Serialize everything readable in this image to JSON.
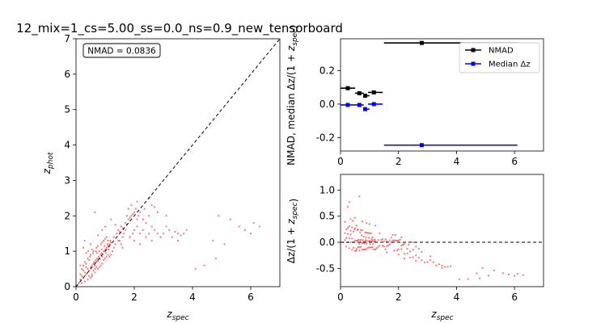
{
  "figure": {
    "title": "12_mix=1_cs=5.00_ss=0.0_ns=0.9_new_tensorboard"
  },
  "colors": {
    "points": "#ff0000",
    "nmad": "#000000",
    "median": "#0000ff",
    "axes": "#000000",
    "background": "#ffffff"
  },
  "chart_data": [
    {
      "id": "scatter",
      "type": "scatter",
      "xlabel": "z_spec",
      "ylabel": "z_phot",
      "xlim": [
        0,
        7
      ],
      "ylim": [
        0,
        7
      ],
      "xticks": [
        0,
        2,
        4,
        6
      ],
      "yticks": [
        0,
        1,
        2,
        3,
        4,
        5,
        6,
        7
      ],
      "annotation": "NMAD = 0.0836",
      "reference_line": {
        "style": "dashed",
        "from": [
          0,
          0
        ],
        "to": [
          7,
          7
        ]
      },
      "points": [
        [
          0.15,
          0.2
        ],
        [
          0.2,
          0.3
        ],
        [
          0.25,
          0.25
        ],
        [
          0.3,
          0.4
        ],
        [
          0.35,
          0.35
        ],
        [
          0.4,
          0.5
        ],
        [
          0.45,
          0.45
        ],
        [
          0.5,
          0.55
        ],
        [
          0.55,
          0.6
        ],
        [
          0.6,
          0.65
        ],
        [
          0.62,
          0.7
        ],
        [
          0.65,
          0.6
        ],
        [
          0.68,
          0.75
        ],
        [
          0.7,
          0.7
        ],
        [
          0.72,
          0.8
        ],
        [
          0.75,
          0.72
        ],
        [
          0.78,
          0.85
        ],
        [
          0.8,
          0.8
        ],
        [
          0.82,
          0.78
        ],
        [
          0.85,
          0.9
        ],
        [
          0.88,
          0.95
        ],
        [
          0.9,
          0.85
        ],
        [
          0.95,
          1.0
        ],
        [
          1.0,
          1.05
        ],
        [
          1.02,
          0.95
        ],
        [
          1.05,
          1.1
        ],
        [
          1.1,
          1.15
        ],
        [
          1.12,
          1.05
        ],
        [
          1.15,
          1.2
        ],
        [
          1.2,
          1.25
        ],
        [
          0.2,
          0.5
        ],
        [
          0.25,
          0.6
        ],
        [
          0.3,
          0.7
        ],
        [
          0.35,
          0.55
        ],
        [
          0.4,
          0.8
        ],
        [
          0.45,
          0.3
        ],
        [
          0.5,
          0.9
        ],
        [
          0.55,
          0.35
        ],
        [
          0.6,
          1.0
        ],
        [
          0.65,
          0.4
        ],
        [
          0.3,
          0.15
        ],
        [
          0.4,
          0.2
        ],
        [
          0.5,
          0.25
        ],
        [
          0.55,
          0.3
        ],
        [
          0.2,
          0.1
        ],
        [
          0.1,
          0.1
        ],
        [
          0.15,
          0.35
        ],
        [
          0.25,
          0.45
        ],
        [
          0.35,
          0.65
        ],
        [
          0.45,
          0.75
        ],
        [
          0.7,
          1.1
        ],
        [
          0.75,
          1.15
        ],
        [
          0.8,
          1.0
        ],
        [
          0.85,
          1.2
        ],
        [
          0.9,
          1.25
        ],
        [
          0.95,
          1.3
        ],
        [
          1.0,
          1.35
        ],
        [
          1.05,
          1.4
        ],
        [
          1.1,
          1.3
        ],
        [
          0.75,
          0.5
        ],
        [
          0.8,
          0.55
        ],
        [
          0.85,
          0.6
        ],
        [
          0.9,
          0.65
        ],
        [
          0.6,
          0.45
        ],
        [
          0.65,
          0.5
        ],
        [
          0.7,
          0.55
        ],
        [
          0.95,
          0.75
        ],
        [
          1.0,
          0.8
        ],
        [
          1.05,
          0.85
        ],
        [
          1.1,
          0.9
        ],
        [
          1.3,
          1.4
        ],
        [
          1.4,
          1.5
        ],
        [
          1.45,
          1.6
        ],
        [
          1.5,
          1.55
        ],
        [
          1.55,
          1.7
        ],
        [
          1.6,
          1.65
        ],
        [
          1.7,
          1.8
        ],
        [
          1.75,
          1.75
        ],
        [
          1.8,
          1.9
        ],
        [
          1.9,
          2.0
        ],
        [
          1.5,
          1.3
        ],
        [
          1.55,
          1.2
        ],
        [
          1.6,
          1.4
        ],
        [
          1.65,
          1.5
        ],
        [
          1.7,
          1.6
        ],
        [
          1.3,
          1.1
        ],
        [
          1.35,
          1.2
        ],
        [
          1.25,
          1.0
        ],
        [
          1.2,
          0.9
        ],
        [
          1.15,
          0.85
        ],
        [
          1.8,
          2.2
        ],
        [
          1.9,
          2.3
        ],
        [
          2.0,
          2.1
        ],
        [
          2.05,
          2.2
        ],
        [
          2.1,
          1.9
        ],
        [
          1.85,
          1.95
        ],
        [
          1.95,
          2.05
        ],
        [
          2.15,
          2.0
        ],
        [
          2.2,
          2.1
        ],
        [
          1.75,
          2.0
        ],
        [
          2.0,
          1.6
        ],
        [
          2.1,
          1.7
        ],
        [
          2.2,
          1.5
        ],
        [
          2.3,
          1.6
        ],
        [
          2.4,
          1.8
        ],
        [
          2.5,
          1.5
        ],
        [
          2.6,
          1.7
        ],
        [
          2.7,
          1.6
        ],
        [
          2.8,
          1.5
        ],
        [
          2.9,
          1.4
        ],
        [
          2.0,
          1.3
        ],
        [
          2.2,
          1.2
        ],
        [
          2.4,
          1.4
        ],
        [
          2.6,
          1.3
        ],
        [
          2.3,
          1.9
        ],
        [
          2.5,
          2.0
        ],
        [
          2.1,
          2.4
        ],
        [
          2.35,
          2.2
        ],
        [
          1.85,
          1.4
        ],
        [
          1.95,
          1.5
        ],
        [
          3.0,
          1.5
        ],
        [
          3.2,
          1.6
        ],
        [
          3.4,
          1.55
        ],
        [
          3.5,
          1.5
        ],
        [
          3.6,
          1.45
        ],
        [
          3.7,
          1.5
        ],
        [
          3.3,
          1.4
        ],
        [
          3.1,
          1.7
        ],
        [
          3.8,
          1.6
        ],
        [
          3.5,
          1.3
        ],
        [
          4.1,
          0.5
        ],
        [
          4.4,
          0.6
        ],
        [
          4.7,
          1.3
        ],
        [
          4.8,
          0.8
        ],
        [
          4.9,
          2.0
        ],
        [
          5.1,
          1.2
        ],
        [
          5.3,
          1.9
        ],
        [
          5.6,
          1.7
        ],
        [
          5.8,
          1.6
        ],
        [
          6.0,
          1.5
        ],
        [
          6.1,
          1.8
        ],
        [
          6.3,
          1.7
        ],
        [
          2.5,
          2.5
        ],
        [
          2.6,
          2.3
        ],
        [
          2.8,
          2.1
        ],
        [
          3.1,
          2.0
        ],
        [
          2.7,
          2.25
        ],
        [
          0.3,
          1.3
        ],
        [
          0.5,
          1.2
        ],
        [
          0.65,
          2.1
        ],
        [
          0.75,
          1.45
        ],
        [
          0.25,
          1.1
        ],
        [
          0.55,
          1.05
        ],
        [
          0.15,
          0.6
        ],
        [
          0.9,
          1.6
        ],
        [
          1.0,
          1.7
        ],
        [
          1.2,
          1.9
        ],
        [
          1.35,
          1.75
        ],
        [
          1.6,
          1.1
        ],
        [
          1.45,
          1.3
        ],
        [
          0.35,
          0.95
        ],
        [
          0.42,
          1.0
        ],
        [
          0.48,
          0.85
        ],
        [
          0.58,
          0.95
        ],
        [
          0.68,
          1.0
        ],
        [
          0.72,
          0.95
        ],
        [
          0.88,
          1.05
        ],
        [
          0.98,
          1.15
        ],
        [
          1.08,
          1.2
        ],
        [
          1.18,
          1.3
        ]
      ]
    },
    {
      "id": "nmad_bins",
      "type": "errorbar",
      "ylabel": "NMAD, median Δz/(1 + z_spec)",
      "xlim": [
        0,
        7
      ],
      "ylim": [
        -0.28,
        0.39
      ],
      "xticks": [
        0,
        2,
        4,
        6
      ],
      "yticks": [
        -0.2,
        0.0,
        0.2
      ],
      "legend_position": "upper-right",
      "series": [
        {
          "name": "NMAD",
          "color": "#000000",
          "x": [
            0.25,
            0.65,
            0.85,
            1.15,
            2.8
          ],
          "y": [
            0.095,
            0.065,
            0.05,
            0.07,
            0.365
          ],
          "xerr_low": [
            0.25,
            0.15,
            0.05,
            0.2,
            1.3
          ],
          "xerr_high": [
            0.25,
            0.15,
            0.15,
            0.3,
            3.3
          ]
        },
        {
          "name": "Median Δz",
          "color": "#0000ff",
          "x": [
            0.25,
            0.65,
            0.85,
            1.15,
            2.8
          ],
          "y": [
            -0.005,
            -0.005,
            -0.03,
            0.0,
            -0.245
          ],
          "xerr_low": [
            0.25,
            0.15,
            0.05,
            0.2,
            1.3
          ],
          "xerr_high": [
            0.25,
            0.15,
            0.15,
            0.3,
            3.3
          ]
        }
      ]
    },
    {
      "id": "residuals",
      "type": "scatter",
      "xlabel": "z_spec",
      "ylabel": "Δz/(1 + z_spec)",
      "xlim": [
        0,
        7
      ],
      "ylim": [
        -0.85,
        1.3
      ],
      "xticks": [
        0,
        2,
        4,
        6
      ],
      "yticks": [
        -0.5,
        0.0,
        0.5,
        1.0
      ],
      "reference_line": {
        "style": "dashed",
        "y": 0
      }
    }
  ]
}
